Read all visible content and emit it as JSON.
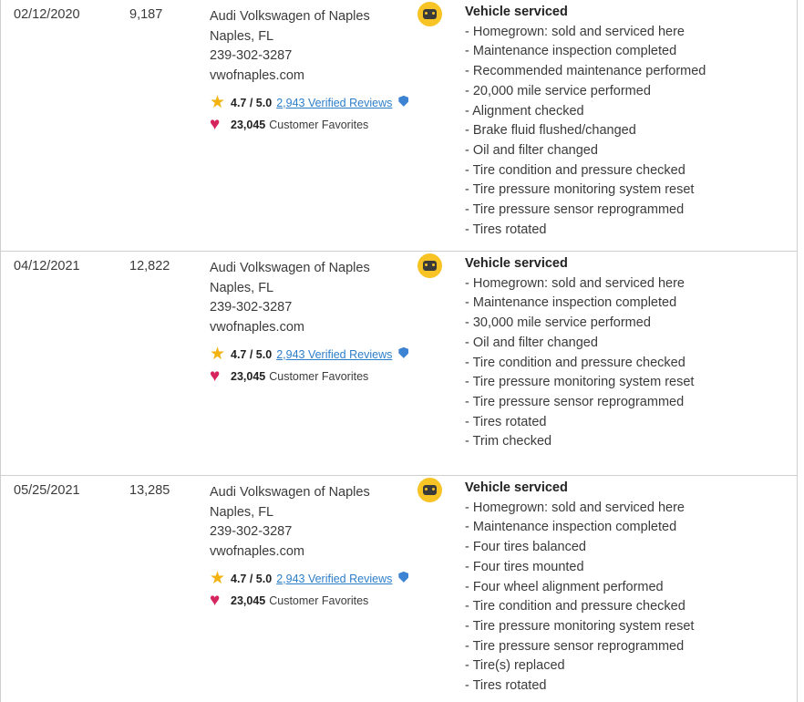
{
  "records": [
    {
      "date": "02/12/2020",
      "mileage": "9,187",
      "dealer": {
        "name": "Audi Volkswagen of Naples",
        "location": "Naples, FL",
        "phone": "239-302-3287",
        "website": "vwofnaples.com",
        "rating": "4.7 / 5.0",
        "reviews": "2,943 Verified Reviews",
        "favorites_count": "23,045",
        "favorites_label": "Customer Favorites"
      },
      "details_title": "Vehicle serviced",
      "details": [
        "Homegrown: sold and serviced here",
        "Maintenance inspection completed",
        "Recommended maintenance performed",
        "20,000 mile service performed",
        "Alignment checked",
        "Brake fluid flushed/changed",
        "Oil and filter changed",
        "Tire condition and pressure checked",
        "Tire pressure monitoring system reset",
        "Tire pressure sensor reprogrammed",
        "Tires rotated"
      ]
    },
    {
      "date": "04/12/2021",
      "mileage": "12,822",
      "dealer": {
        "name": "Audi Volkswagen of Naples",
        "location": "Naples, FL",
        "phone": "239-302-3287",
        "website": "vwofnaples.com",
        "rating": "4.7 / 5.0",
        "reviews": "2,943 Verified Reviews",
        "favorites_count": "23,045",
        "favorites_label": "Customer Favorites"
      },
      "details_title": "Vehicle serviced",
      "details": [
        "Homegrown: sold and serviced here",
        "Maintenance inspection completed",
        "30,000 mile service performed",
        "Oil and filter changed",
        "Tire condition and pressure checked",
        "Tire pressure monitoring system reset",
        "Tire pressure sensor reprogrammed",
        "Tires rotated",
        "Trim checked"
      ]
    },
    {
      "date": "05/25/2021",
      "mileage": "13,285",
      "dealer": {
        "name": "Audi Volkswagen of Naples",
        "location": "Naples, FL",
        "phone": "239-302-3287",
        "website": "vwofnaples.com",
        "rating": "4.7 / 5.0",
        "reviews": "2,943 Verified Reviews",
        "favorites_count": "23,045",
        "favorites_label": "Customer Favorites"
      },
      "details_title": "Vehicle serviced",
      "details": [
        "Homegrown: sold and serviced here",
        "Maintenance inspection completed",
        "Four tires balanced",
        "Four tires mounted",
        "Four wheel alignment performed",
        "Tire condition and pressure checked",
        "Tire pressure monitoring system reset",
        "Tire pressure sensor reprogrammed",
        "Tire(s) replaced",
        "Tires rotated"
      ]
    }
  ],
  "list_bullet": "- ",
  "icons": {
    "rating": "star-icon",
    "favorites": "heart-icon",
    "verified": "shield-check-icon",
    "service": "service-car-icon"
  },
  "colors": {
    "star": "#f2b20f",
    "heart": "#d6245f",
    "link": "#2d7ec9",
    "service_badge": "#f7c325",
    "divider": "#cfcfcf"
  }
}
